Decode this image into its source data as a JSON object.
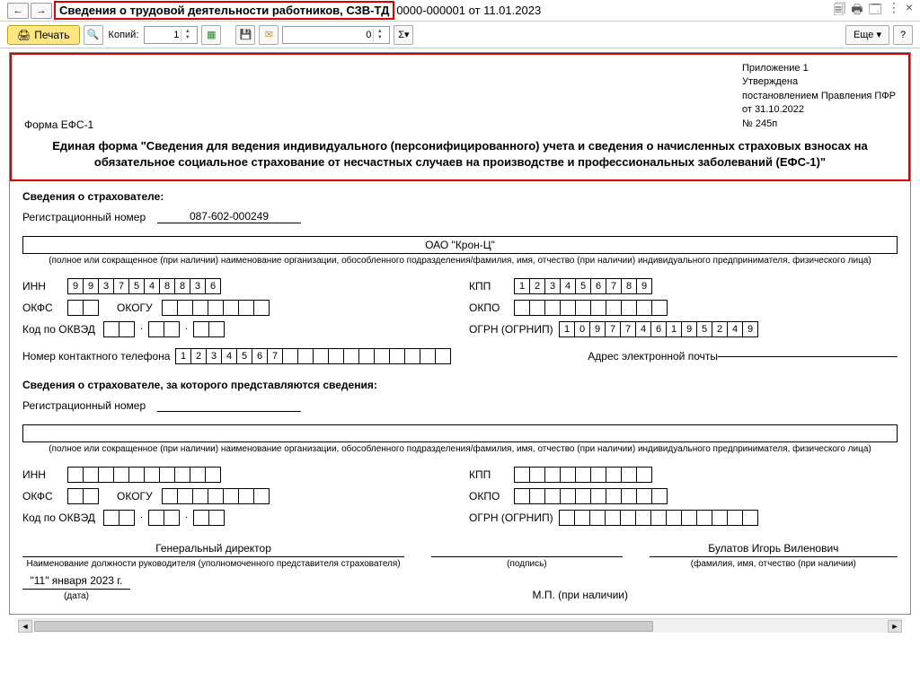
{
  "titlebar": {
    "highlighted": "Сведения о трудовой деятельности работников, СЗВ-ТД",
    "rest": "0000-000001 от 11.01.2023"
  },
  "toolbar": {
    "print": "Печать",
    "copies_label": "Копий:",
    "copies_value": "1",
    "zero": "0",
    "sigma": "Σ",
    "more": "Еще",
    "help": "?"
  },
  "approval": {
    "l1": "Приложение 1",
    "l2": "Утверждена",
    "l3": "постановлением Правления ПФР",
    "l4": "от 31.10.2022",
    "l5": "№ 245п"
  },
  "form_code": "Форма ЕФС-1",
  "main_title": "Единая форма \"Сведения для ведения индивидуального (персонифицированного) учета и сведения о начисленных страховых взносах на обязательное социальное страхование от несчастных случаев на производстве и профессиональных заболеваний (ЕФС-1)\"",
  "s1": {
    "title": "Сведения о страхователе:",
    "reg_label": "Регистрационный номер",
    "reg_value": "087-602-000249",
    "org_name": "ОАО \"Крон-Ц\"",
    "org_hint": "(полное или сокращенное (при наличии) наименование организации, обособленного подразделения/фамилия, имя, отчество (при наличии) индивидуального предпринимателя, физического лица)",
    "inn_label": "ИНН",
    "inn": [
      "9",
      "9",
      "3",
      "7",
      "5",
      "4",
      "8",
      "8",
      "3",
      "6"
    ],
    "kpp_label": "КПП",
    "kpp": [
      "1",
      "2",
      "3",
      "4",
      "5",
      "6",
      "7",
      "8",
      "9"
    ],
    "okfs_label": "ОКФС",
    "okogu_label": "ОКОГУ",
    "okpo_label": "ОКПО",
    "okved_label": "Код по ОКВЭД",
    "ogrn_label": "ОГРН (ОГРНИП)",
    "ogrn": [
      "1",
      "0",
      "9",
      "7",
      "7",
      "4",
      "6",
      "1",
      "9",
      "5",
      "2",
      "4",
      "9"
    ],
    "phone_label": "Номер контактного телефона",
    "phone": [
      "1",
      "2",
      "3",
      "4",
      "5",
      "6",
      "7"
    ],
    "email_label": "Адрес электронной почты"
  },
  "s2": {
    "title": "Сведения о страхователе, за которого представляются сведения:",
    "reg_label": "Регистрационный номер",
    "org_hint": "(полное или сокращенное (при наличии) наименование организации, обособленного подразделения/фамилия, имя, отчество (при наличии) индивидуального предпринимателя, физического лица)",
    "inn_label": "ИНН",
    "kpp_label": "КПП",
    "okfs_label": "ОКФС",
    "okogu_label": "ОКОГУ",
    "okpo_label": "ОКПО",
    "okved_label": "Код по ОКВЭД",
    "ogrn_label": "ОГРН (ОГРНИП)"
  },
  "sig": {
    "position": "Генеральный директор",
    "pos_hint": "Наименование должности руководителя (уполномоченного представителя страхователя)",
    "sign_hint": "(подпись)",
    "fio": "Булатов Игорь Виленович",
    "fio_hint": "(фамилия, имя, отчество (при наличии)",
    "date": "\"11\" января 2023 г.",
    "date_hint": "(дата)",
    "mp": "М.П. (при наличии)"
  }
}
